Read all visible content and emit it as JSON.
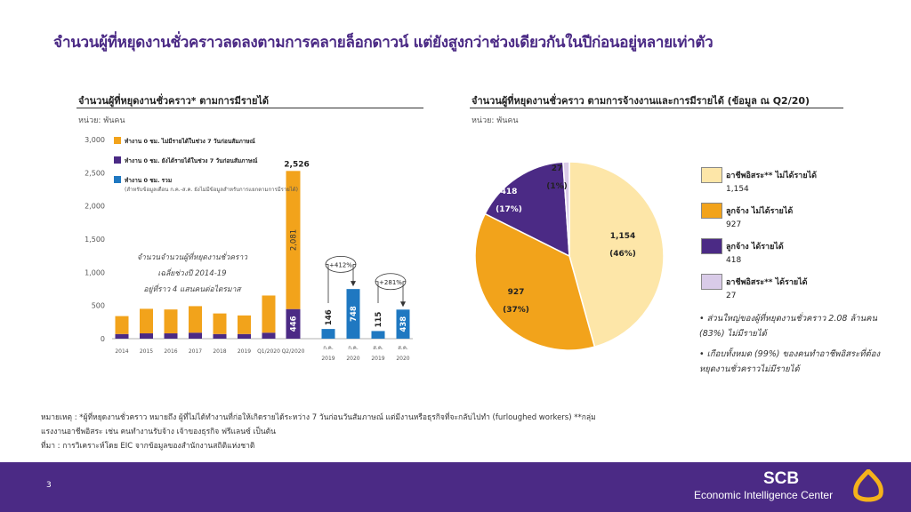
{
  "title": "จำนวนผู้ที่หยุดงานชั่วคราวลดลงตามการคลายล็อกดาวน์ แต่ยังสูงกว่าช่วงเดียวกันในปีก่อนอยู่หลายเท่าตัว",
  "left_panel": {
    "title": "จำนวนผู้ที่หยุดงานชั่วคราว* ตามการมีรายได้",
    "unit": "หน่วย: พันคน",
    "annotation_line1": "จำนวนจำนวนผู้ที่หยุดงานชั่วคราว",
    "annotation_line2": "เฉลี่ยช่วงปี 2014-19",
    "annotation_line3": "อยู่ที่ราว 4 แสนคนต่อไตรมาส",
    "growth_jul": "+412%",
    "growth_aug": "+281%"
  },
  "right_panel": {
    "title": "จำนวนผู้ที่หยุดงานชั่วคราว ตามการจ้างงานและการมีรายได้ (ข้อมูล ณ Q2/20)",
    "unit": "หน่วย: พันคน",
    "legend": [
      {
        "label": "อาชีพอิสระ** ไม่ได้รายได้",
        "value": "1,154",
        "color": "#fde6a8"
      },
      {
        "label": "ลูกจ้าง ไม่ได้รายได้",
        "value": "927",
        "color": "#f2a31b"
      },
      {
        "label": "ลูกจ้าง ได้รายได้",
        "value": "418",
        "color": "#4b2a85"
      },
      {
        "label": "อาชีพอิสระ** ได้รายได้",
        "value": "27",
        "color": "#d9cbe8"
      }
    ],
    "bullet1": "ส่วนใหญ่ของผู้ที่หยุดงานชั่วคราว 2.08 ล้านคน (83%) ไม่มีรายได้",
    "bullet2": "เกือบทั้งหมด (99%) ของคนทำอาชีพอิสระที่ต้องหยุดงานชั่วคราวไม่มีรายได้"
  },
  "notes": {
    "line1": "หมายเหตุ : *ผู้ที่หยุดงานชั่วคราว หมายถึง ผู้ที่ไม่ได้ทำงานที่ก่อให้เกิดรายได้ระหว่าง 7 วันก่อนวันสัมภาษณ์ แต่มีงานหรือธุรกิจที่จะกลับไปทำ (furloughed workers) **กลุ่ม",
    "line2": "แรงงานอาชีพอิสระ เช่น คนทำงานรับจ้าง เจ้าของธุรกิจ ฟรีแลนซ์ เป็นต้น",
    "line3": "ที่มา : การวิเคราะห์โดย EIC จากข้อมูลของสำนักงานสถิติแห่งชาติ"
  },
  "footer": {
    "page": "3",
    "brand": "SCB",
    "brand_sub": "Economic Intelligence Center"
  },
  "colors": {
    "purple": "#4b2a85",
    "orange": "#f2a31b",
    "blue": "#1f78c1",
    "light_yellow": "#fde6a8",
    "light_purple": "#d9cbe8"
  },
  "chart_data": [
    {
      "type": "bar",
      "stacked": true,
      "categories": [
        "2014",
        "2015",
        "2016",
        "2017",
        "2018",
        "2019",
        "Q1/2020",
        "Q2/2020"
      ],
      "x_sublabels": [
        {
          "top": "ก.ค.",
          "bottom": "2019"
        },
        {
          "top": "ก.ค.",
          "bottom": "2020"
        },
        {
          "top": "ส.ค.",
          "bottom": "2019"
        },
        {
          "top": "ส.ค.",
          "bottom": "2020"
        }
      ],
      "series": [
        {
          "name": "ทำงาน 0 ชม. ไม่มีรายได้ในช่วง 7 วันก่อนสัมภาษณ์",
          "color": "#f2a31b",
          "values": [
            270,
            370,
            360,
            400,
            310,
            280,
            560,
            2081
          ]
        },
        {
          "name": "ทำงาน 0 ชม. ยังได้รายได้ในช่วง 7 วันก่อนสัมภาษณ์",
          "color": "#4b2a85",
          "values": [
            70,
            80,
            80,
            90,
            70,
            70,
            90,
            446
          ]
        },
        {
          "name": "ทำงาน 0 ชม. รวม",
          "note": "(สำหรับข้อมูลเดือน ก.ค.-ส.ค. ยังไม่มีข้อมูลสำหรับการแยกตามการมีรายได้)",
          "color": "#1f78c1",
          "monthly_labels": [
            "ก.ค. 2019",
            "ก.ค. 2020",
            "ส.ค. 2019",
            "ส.ค. 2020"
          ],
          "monthly_values": [
            146,
            748,
            115,
            438
          ]
        }
      ],
      "totals": {
        "Q2/2020": 2526
      },
      "yticks": [
        "0",
        "500",
        "1,000",
        "1,500",
        "2,000",
        "2,500",
        "3,000"
      ],
      "ylim": [
        0,
        3000
      ]
    },
    {
      "type": "pie",
      "slices": [
        {
          "label": "อาชีพอิสระ** ไม่ได้รายได้",
          "value": 1154,
          "value_label": "1,154",
          "pct_label": "(46%)",
          "color": "#fde6a8"
        },
        {
          "label": "ลูกจ้าง ไม่ได้รายได้",
          "value": 927,
          "value_label": "927",
          "pct_label": "(37%)",
          "color": "#f2a31b"
        },
        {
          "label": "ลูกจ้าง ได้รายได้",
          "value": 418,
          "value_label": "418",
          "pct_label": "(17%)",
          "color": "#4b2a85"
        },
        {
          "label": "อาชีพอิสระ** ได้รายได้",
          "value": 27,
          "value_label": "27",
          "pct_label": "(1%)",
          "color": "#d9cbe8"
        }
      ]
    }
  ]
}
